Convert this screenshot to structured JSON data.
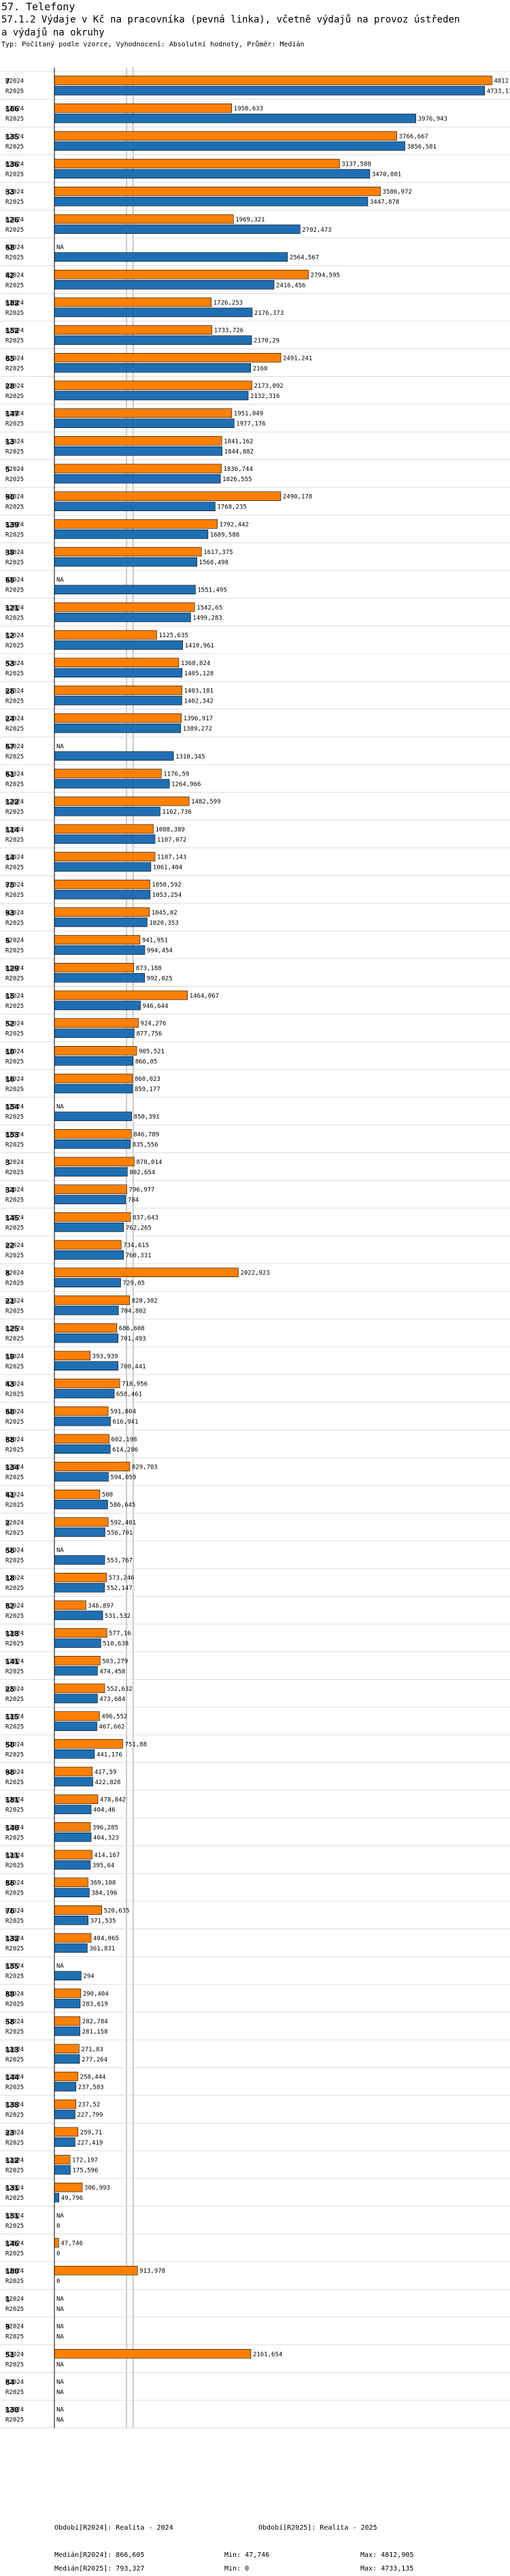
{
  "header": {
    "section": "57. Telefony",
    "title_line1": "57.1.2 Výdaje v Kč na pracovníka (pevná linka), včetně výdajů na provoz ústředen",
    "title_line2": "a výdajů na okruhy",
    "subtitle": "Typ: Počítaný podle vzorce, Vyhodnocení: Absolutní hodnoty, Průměr: Medián"
  },
  "colors": {
    "r2024": "#ff8000",
    "r2025": "#1f6fb4",
    "axis": "#000000",
    "refline": "#999999",
    "border": "#000000"
  },
  "legend": {
    "r2024_label": "Období[R2024]: Realita - 2024",
    "r2025_label": "Období[R2025]: Realita - 2025",
    "median_2024": "Medián[R2024]: 866,605",
    "min_2024": "Min: 47,746",
    "max_2024": "Max: 4812,905",
    "median_2025": "Medián[R2025]: 793,327",
    "min_2025": "Min: 0",
    "max_2025": "Max: 4733,135"
  },
  "chart_data": {
    "type": "bar",
    "orientation": "horizontal",
    "series_names": [
      "R2024",
      "R2025"
    ],
    "xlim": [
      0,
      4900
    ],
    "reference_lines": [
      793.327,
      866.605
    ],
    "groups": [
      {
        "id": "7",
        "r2024": "4812,905",
        "r2025": "4733,135"
      },
      {
        "id": "166",
        "r2024": "1950,633",
        "r2025": "3976,943"
      },
      {
        "id": "135",
        "r2024": "3766,667",
        "r2025": "3856,581"
      },
      {
        "id": "136",
        "r2024": "3137,588",
        "r2025": "3470,001"
      },
      {
        "id": "33",
        "r2024": "3586,972",
        "r2025": "3447,878"
      },
      {
        "id": "126",
        "r2024": "1969,321",
        "r2025": "2702,473"
      },
      {
        "id": "68",
        "r2024": "NA",
        "r2025": "2564,567"
      },
      {
        "id": "42",
        "r2024": "2794,595",
        "r2025": "2416,456"
      },
      {
        "id": "182",
        "r2024": "1726,253",
        "r2025": "2176,373"
      },
      {
        "id": "152",
        "r2024": "1733,726",
        "r2025": "2170,29"
      },
      {
        "id": "85",
        "r2024": "2491,241",
        "r2025": "2160"
      },
      {
        "id": "28",
        "r2024": "2173,092",
        "r2025": "2132,316"
      },
      {
        "id": "147",
        "r2024": "1951,049",
        "r2025": "1977,176"
      },
      {
        "id": "13",
        "r2024": "1841,162",
        "r2025": "1844,882"
      },
      {
        "id": "5",
        "r2024": "1836,744",
        "r2025": "1826,555"
      },
      {
        "id": "90",
        "r2024": "2490,178",
        "r2025": "1768,235"
      },
      {
        "id": "139",
        "r2024": "1792,442",
        "r2025": "1689,588"
      },
      {
        "id": "39",
        "r2024": "1617,375",
        "r2025": "1568,498"
      },
      {
        "id": "69",
        "r2024": "NA",
        "r2025": "1551,495"
      },
      {
        "id": "121",
        "r2024": "1542,65",
        "r2025": "1499,283"
      },
      {
        "id": "12",
        "r2024": "1125,635",
        "r2025": "1410,961"
      },
      {
        "id": "53",
        "r2024": "1368,824",
        "r2025": "1405,128"
      },
      {
        "id": "26",
        "r2024": "1403,181",
        "r2025": "1402,342"
      },
      {
        "id": "24",
        "r2024": "1396,917",
        "r2025": "1389,272"
      },
      {
        "id": "67",
        "r2024": "NA",
        "r2025": "1310,345"
      },
      {
        "id": "61",
        "r2024": "1176,59",
        "r2025": "1264,966"
      },
      {
        "id": "122",
        "r2024": "1482,599",
        "r2025": "1162,736"
      },
      {
        "id": "114",
        "r2024": "1088,389",
        "r2025": "1107,072"
      },
      {
        "id": "14",
        "r2024": "1107,143",
        "r2025": "1061,404"
      },
      {
        "id": "75",
        "r2024": "1050,592",
        "r2025": "1053,254"
      },
      {
        "id": "93",
        "r2024": "1045,02",
        "r2025": "1020,353"
      },
      {
        "id": "6",
        "r2024": "941,951",
        "r2025": "994,454"
      },
      {
        "id": "129",
        "r2024": "873,188",
        "r2025": "992,025"
      },
      {
        "id": "15",
        "r2024": "1464,067",
        "r2025": "946,644"
      },
      {
        "id": "52",
        "r2024": "924,276",
        "r2025": "877,756"
      },
      {
        "id": "10",
        "r2024": "905,521",
        "r2025": "866,05"
      },
      {
        "id": "16",
        "r2024": "860,023",
        "r2025": "859,177"
      },
      {
        "id": "154",
        "r2024": "NA",
        "r2025": "850,391"
      },
      {
        "id": "153",
        "r2024": "846,789",
        "r2025": "835,556"
      },
      {
        "id": "3",
        "r2024": "878,014",
        "r2025": "802,654"
      },
      {
        "id": "34",
        "r2024": "796,977",
        "r2025": "784"
      },
      {
        "id": "145",
        "r2024": "837,643",
        "r2025": "762,265"
      },
      {
        "id": "22",
        "r2024": "734,615",
        "r2025": "760,331"
      },
      {
        "id": "8",
        "r2024": "2022,923",
        "r2025": "729,05"
      },
      {
        "id": "21",
        "r2024": "828,302",
        "r2025": "704,802"
      },
      {
        "id": "125",
        "r2024": "686,608",
        "r2025": "701,493"
      },
      {
        "id": "19",
        "r2024": "393,939",
        "r2025": "700,441"
      },
      {
        "id": "43",
        "r2024": "718,956",
        "r2025": "658,461"
      },
      {
        "id": "60",
        "r2024": "591,804",
        "r2025": "616,941"
      },
      {
        "id": "88",
        "r2024": "602,198",
        "r2025": "614,286"
      },
      {
        "id": "134",
        "r2024": "829,703",
        "r2025": "594,059"
      },
      {
        "id": "41",
        "r2024": "500",
        "r2025": "586,645"
      },
      {
        "id": "2",
        "r2024": "592,401",
        "r2025": "556,701"
      },
      {
        "id": "56",
        "r2024": "NA",
        "r2025": "553,767"
      },
      {
        "id": "18",
        "r2024": "573,246",
        "r2025": "552,147"
      },
      {
        "id": "82",
        "r2024": "346,897",
        "r2025": "531,532"
      },
      {
        "id": "118",
        "r2024": "577,16",
        "r2025": "510,638"
      },
      {
        "id": "141",
        "r2024": "503,279",
        "r2025": "474,458"
      },
      {
        "id": "25",
        "r2024": "552,632",
        "r2025": "473,684"
      },
      {
        "id": "115",
        "r2024": "496,552",
        "r2025": "467,662"
      },
      {
        "id": "50",
        "r2024": "751,88",
        "r2025": "441,176"
      },
      {
        "id": "96",
        "r2024": "417,59",
        "r2025": "422,828"
      },
      {
        "id": "181",
        "r2024": "478,842",
        "r2025": "404,46"
      },
      {
        "id": "140",
        "r2024": "396,285",
        "r2025": "404,323"
      },
      {
        "id": "111",
        "r2024": "414,167",
        "r2025": "395,64"
      },
      {
        "id": "86",
        "r2024": "369,108",
        "r2025": "384,196"
      },
      {
        "id": "76",
        "r2024": "520,635",
        "r2025": "371,535"
      },
      {
        "id": "132",
        "r2024": "404,065",
        "r2025": "361,831"
      },
      {
        "id": "155",
        "r2024": "NA",
        "r2025": "294"
      },
      {
        "id": "89",
        "r2024": "290,404",
        "r2025": "283,619"
      },
      {
        "id": "58",
        "r2024": "282,784",
        "r2025": "281,158"
      },
      {
        "id": "113",
        "r2024": "271,83",
        "r2025": "277,264"
      },
      {
        "id": "144",
        "r2024": "258,444",
        "r2025": "237,583"
      },
      {
        "id": "138",
        "r2024": "237,52",
        "r2025": "227,799"
      },
      {
        "id": "23",
        "r2024": "259,71",
        "r2025": "227,419"
      },
      {
        "id": "112",
        "r2024": "172,197",
        "r2025": "175,596"
      },
      {
        "id": "131",
        "r2024": "306,993",
        "r2025": "49,796"
      },
      {
        "id": "151",
        "r2024": "NA",
        "r2025": "0"
      },
      {
        "id": "146",
        "r2024": "47,746",
        "r2025": "0"
      },
      {
        "id": "180",
        "r2024": "913,978",
        "r2025": "0"
      },
      {
        "id": "1",
        "r2024": "NA",
        "r2025": "NA"
      },
      {
        "id": "9",
        "r2024": "NA",
        "r2025": "NA"
      },
      {
        "id": "51",
        "r2024": "2161,654",
        "r2025": "NA"
      },
      {
        "id": "84",
        "r2024": "NA",
        "r2025": "NA"
      },
      {
        "id": "130",
        "r2024": "NA",
        "r2025": "NA"
      }
    ]
  }
}
